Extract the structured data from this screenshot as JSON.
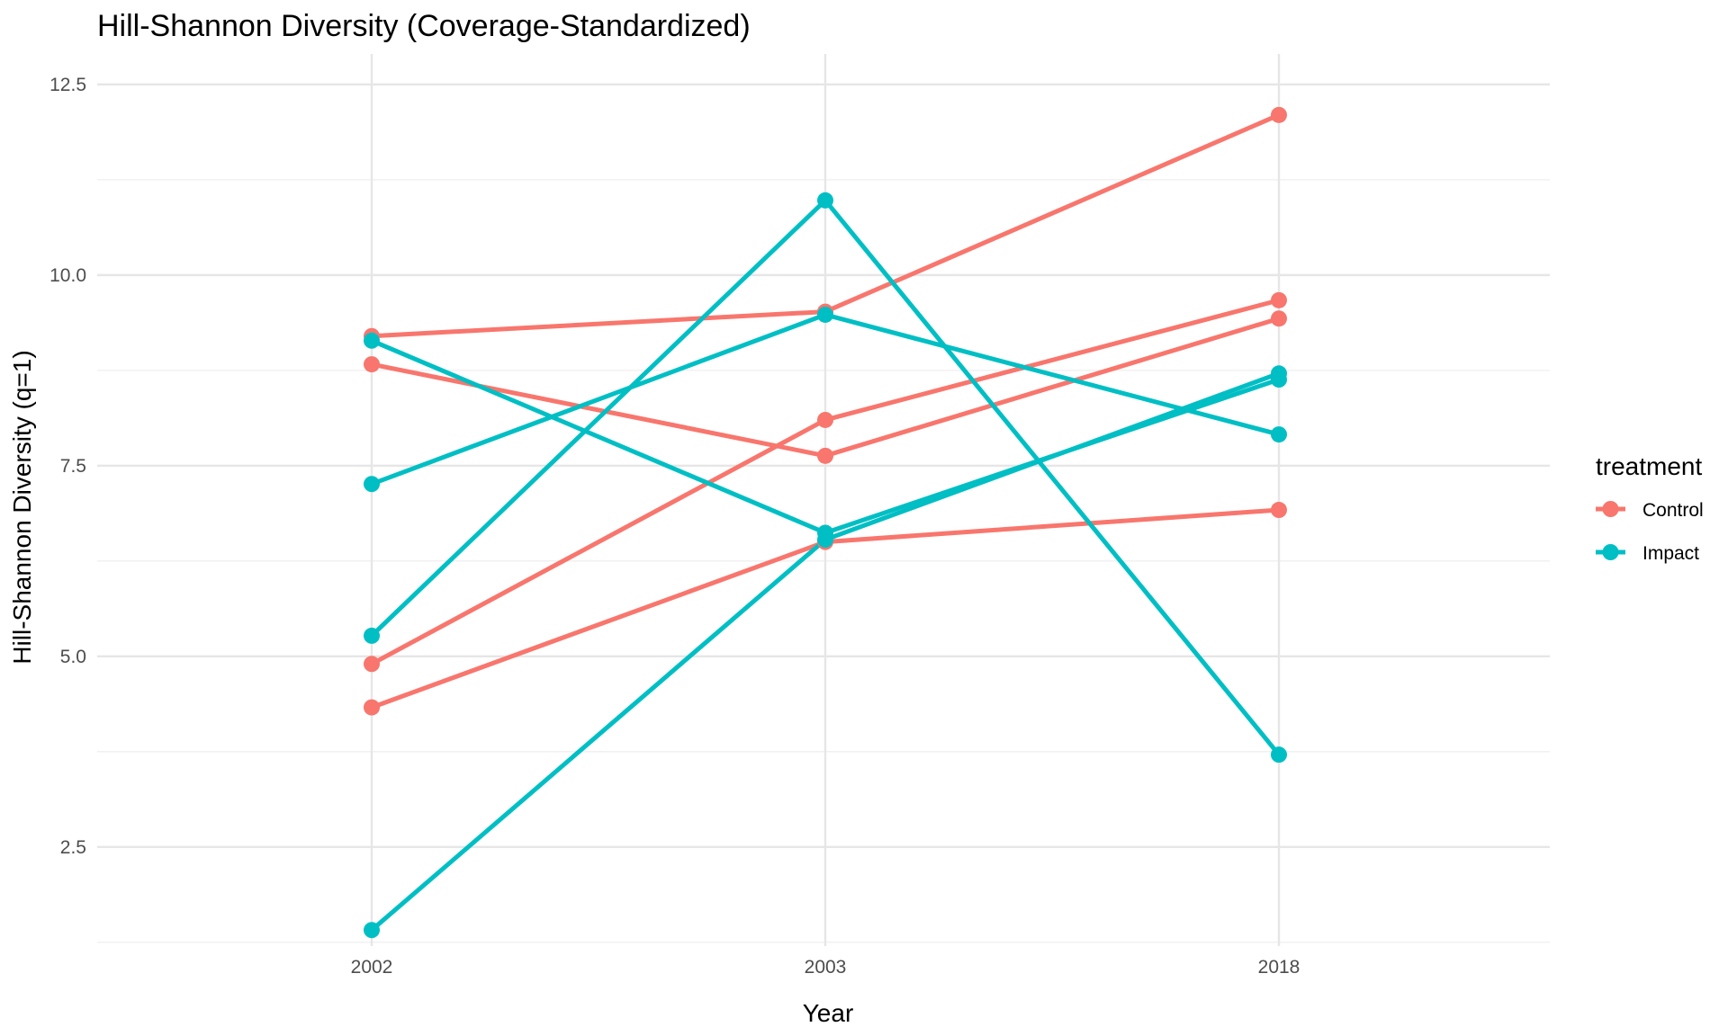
{
  "chart_data": {
    "type": "line",
    "title": "Hill-Shannon Diversity (Coverage-Standardized)",
    "xlabel": "Year",
    "ylabel": "Hill-Shannon Diversity (q=1)",
    "categories": [
      "2002",
      "2003",
      "2018"
    ],
    "y_ticks": [
      "2.5",
      "5.0",
      "7.5",
      "10.0",
      "12.5"
    ],
    "ylim": [
      1.2,
      12.9
    ],
    "grid": true,
    "legend": {
      "title": "treatment",
      "position": "right",
      "entries": [
        "Control",
        "Impact"
      ]
    },
    "colors": {
      "Control": "#F8766D",
      "Impact": "#00BFC4"
    },
    "series": [
      {
        "group": "Control",
        "values": [
          9.2,
          9.52,
          12.1
        ]
      },
      {
        "group": "Control",
        "values": [
          8.83,
          7.63,
          9.43
        ]
      },
      {
        "group": "Control",
        "values": [
          4.9,
          8.1,
          9.67
        ]
      },
      {
        "group": "Control",
        "values": [
          4.33,
          6.5,
          6.92
        ]
      },
      {
        "group": "Impact",
        "values": [
          9.14,
          6.62,
          8.63
        ]
      },
      {
        "group": "Impact",
        "values": [
          7.26,
          9.48,
          7.91
        ]
      },
      {
        "group": "Impact",
        "values": [
          5.27,
          10.98,
          3.71
        ]
      },
      {
        "group": "Impact",
        "values": [
          1.41,
          6.53,
          8.71
        ]
      }
    ]
  }
}
